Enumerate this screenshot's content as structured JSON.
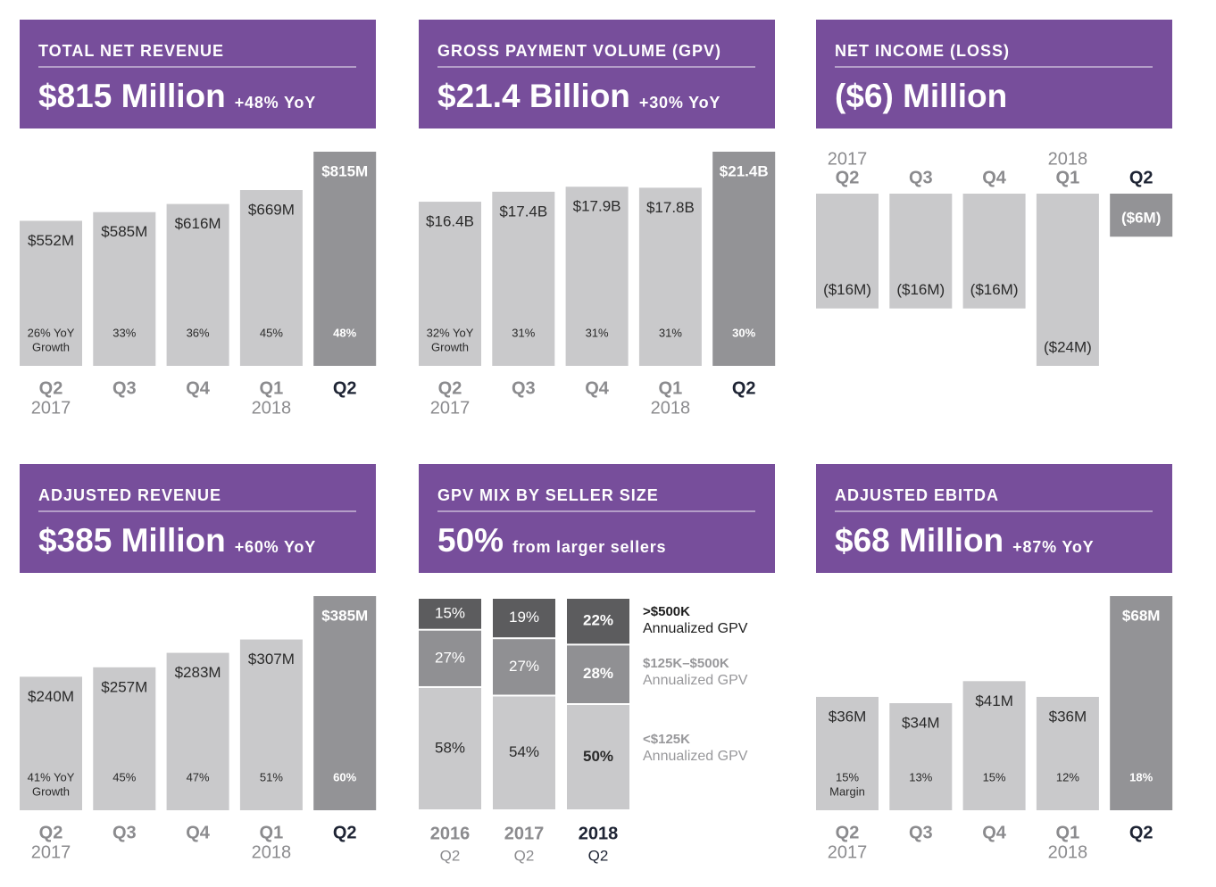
{
  "chart_data": [
    {
      "type": "bar",
      "title": "TOTAL NET REVENUE",
      "headline": "$815 Million",
      "headline_note": "+48% YoY",
      "categories": [
        "Q2",
        "Q3",
        "Q4",
        "Q1",
        "Q2"
      ],
      "category_years": [
        "2017",
        null,
        null,
        "2018",
        null
      ],
      "values": [
        552,
        585,
        616,
        669,
        815
      ],
      "value_labels": [
        "$552M",
        "$585M",
        "$616M",
        "$669M",
        "$815M"
      ],
      "colors": [
        "#c9c9cb",
        "#c9c9cb",
        "#c9c9cb",
        "#c9c9cb",
        "#939396"
      ],
      "category_colors": [
        "#8b8b8e",
        "#8b8b8e",
        "#8b8b8e",
        "#8b8b8e",
        "#1e2434"
      ],
      "notes": [
        26,
        33,
        36,
        45,
        48
      ],
      "note_labels": [
        "26% YoY",
        "33%",
        "36%",
        "45%",
        "48%"
      ],
      "note_caption": "Growth"
    },
    {
      "type": "bar",
      "title": "GROSS PAYMENT VOLUME (GPV)",
      "headline": "$21.4 Billion",
      "headline_note": "+30% YoY",
      "categories": [
        "Q2",
        "Q3",
        "Q4",
        "Q1",
        "Q2"
      ],
      "category_years": [
        "2017",
        null,
        null,
        "2018",
        null
      ],
      "values": [
        16.4,
        17.4,
        17.9,
        17.8,
        21.4
      ],
      "value_labels": [
        "$16.4B",
        "$17.4B",
        "$17.9B",
        "$17.8B",
        "$21.4B"
      ],
      "colors": [
        "#c9c9cb",
        "#c9c9cb",
        "#c9c9cb",
        "#c9c9cb",
        "#939396"
      ],
      "category_colors": [
        "#8b8b8e",
        "#8b8b8e",
        "#8b8b8e",
        "#8b8b8e",
        "#1e2434"
      ],
      "notes": [
        32,
        31,
        31,
        31,
        30
      ],
      "note_labels": [
        "32% YoY",
        "31%",
        "31%",
        "31%",
        "30%"
      ],
      "note_caption": "Growth"
    },
    {
      "type": "bar",
      "title": "NET INCOME (LOSS)",
      "headline": "($6) Million",
      "categories": [
        "Q2",
        "Q3",
        "Q4",
        "Q1",
        "Q2"
      ],
      "category_years": [
        "2017",
        null,
        null,
        "2018",
        null
      ],
      "values": [
        -16,
        -16,
        -16,
        -24,
        -6
      ],
      "value_labels": [
        "($16M)",
        "($16M)",
        "($16M)",
        "($24M)",
        "($6M)"
      ],
      "colors": [
        "#c9c9cb",
        "#c9c9cb",
        "#c9c9cb",
        "#c9c9cb",
        "#939396"
      ],
      "category_colors": [
        "#8b8b8e",
        "#8b8b8e",
        "#8b8b8e",
        "#8b8b8e",
        "#1e2434"
      ]
    },
    {
      "type": "bar",
      "title": "ADJUSTED REVENUE",
      "headline": "$385 Million",
      "headline_note": "+60% YoY",
      "categories": [
        "Q2",
        "Q3",
        "Q4",
        "Q1",
        "Q2"
      ],
      "category_years": [
        "2017",
        null,
        null,
        "2018",
        null
      ],
      "values": [
        240,
        257,
        283,
        307,
        385
      ],
      "value_labels": [
        "$240M",
        "$257M",
        "$283M",
        "$307M",
        "$385M"
      ],
      "colors": [
        "#c9c9cb",
        "#c9c9cb",
        "#c9c9cb",
        "#c9c9cb",
        "#939396"
      ],
      "category_colors": [
        "#8b8b8e",
        "#8b8b8e",
        "#8b8b8e",
        "#8b8b8e",
        "#1e2434"
      ],
      "notes": [
        41,
        45,
        47,
        51,
        60
      ],
      "note_labels": [
        "41% YoY",
        "45%",
        "47%",
        "51%",
        "60%"
      ],
      "note_caption": "Growth"
    },
    {
      "type": "stacked_bar",
      "title": "GPV MIX BY SELLER SIZE",
      "headline": "50%",
      "headline_note": "from larger sellers",
      "categories": [
        "2016",
        "2017",
        "2018"
      ],
      "category_years": [
        "Q2",
        "Q2",
        "Q2"
      ],
      "category_colors": [
        "#8b8b8e",
        "#8b8b8e",
        "#1e2434"
      ],
      "series": [
        {
          "name": ">$500K",
          "note": "Annualized GPV",
          "color": "#5c5c5e",
          "text_color": "#1e1e1e",
          "values": [
            15,
            19,
            22
          ],
          "value_labels": [
            "15%",
            "19%",
            "22%"
          ]
        },
        {
          "name": "$125K–$500K",
          "note": "Annualized GPV",
          "color": "#909093",
          "text_color": "#98989b",
          "values": [
            27,
            27,
            28
          ],
          "value_labels": [
            "27%",
            "27%",
            "28%"
          ]
        },
        {
          "name": "<$125K",
          "note": "Annualized GPV",
          "color": "#c9c9cb",
          "text_color": "#98989b",
          "values": [
            58,
            54,
            50
          ],
          "value_labels": [
            "58%",
            "54%",
            "50%"
          ]
        }
      ]
    },
    {
      "type": "bar",
      "title": "ADJUSTED EBITDA",
      "headline": "$68 Million",
      "headline_note": "+87% YoY",
      "categories": [
        "Q2",
        "Q3",
        "Q4",
        "Q1",
        "Q2"
      ],
      "category_years": [
        "2017",
        null,
        null,
        "2018",
        null
      ],
      "values": [
        36,
        34,
        41,
        36,
        68
      ],
      "value_labels": [
        "$36M",
        "$34M",
        "$41M",
        "$36M",
        "$68M"
      ],
      "colors": [
        "#c9c9cb",
        "#c9c9cb",
        "#c9c9cb",
        "#c9c9cb",
        "#939396"
      ],
      "category_colors": [
        "#8b8b8e",
        "#8b8b8e",
        "#8b8b8e",
        "#8b8b8e",
        "#1e2434"
      ],
      "notes": [
        15,
        13,
        15,
        12,
        18
      ],
      "note_labels": [
        "15%",
        "13%",
        "15%",
        "12%",
        "18%"
      ],
      "note_caption": "Margin"
    }
  ]
}
